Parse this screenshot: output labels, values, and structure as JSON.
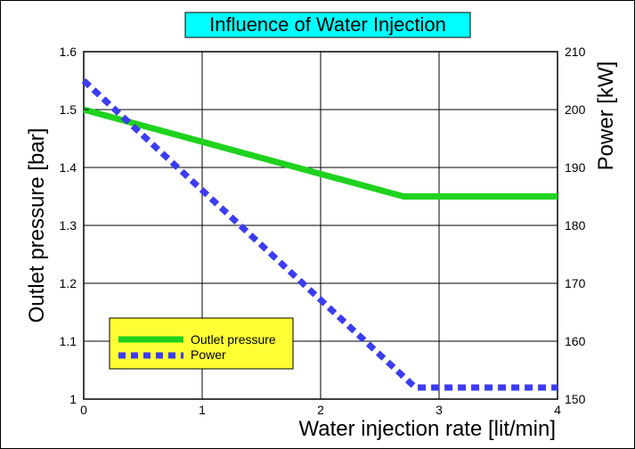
{
  "chart_data": {
    "type": "line",
    "title": "Influence of Water Injection",
    "xlabel": "Water injection rate [lit/min]",
    "ylabel": "Outlet pressure [bar]",
    "y2label": "Power [kW]",
    "xlim": [
      0,
      4
    ],
    "ylim": [
      1,
      1.6
    ],
    "y2lim": [
      150,
      210
    ],
    "xticks": [
      "0",
      "1",
      "2",
      "3",
      "4"
    ],
    "yticks": [
      "1",
      "1.1",
      "1.2",
      "1.3",
      "1.4",
      "1.5",
      "1.6"
    ],
    "y2ticks": [
      "150",
      "160",
      "170",
      "180",
      "190",
      "200",
      "210"
    ],
    "grid": true,
    "legend_position": "bottom-left",
    "series": [
      {
        "name": "Outlet pressure",
        "axis": "left",
        "color": "#1fd21f",
        "style": "solid",
        "x": [
          0,
          2.7,
          4
        ],
        "y": [
          1.5,
          1.35,
          1.35
        ]
      },
      {
        "name": "Power",
        "axis": "right",
        "color": "#3c3cf0",
        "style": "dashed",
        "x": [
          0,
          2.8,
          4
        ],
        "y": [
          205,
          152,
          152
        ]
      }
    ],
    "colors": {
      "title_box": "#00ffff",
      "legend_box": "#ffff33"
    }
  }
}
